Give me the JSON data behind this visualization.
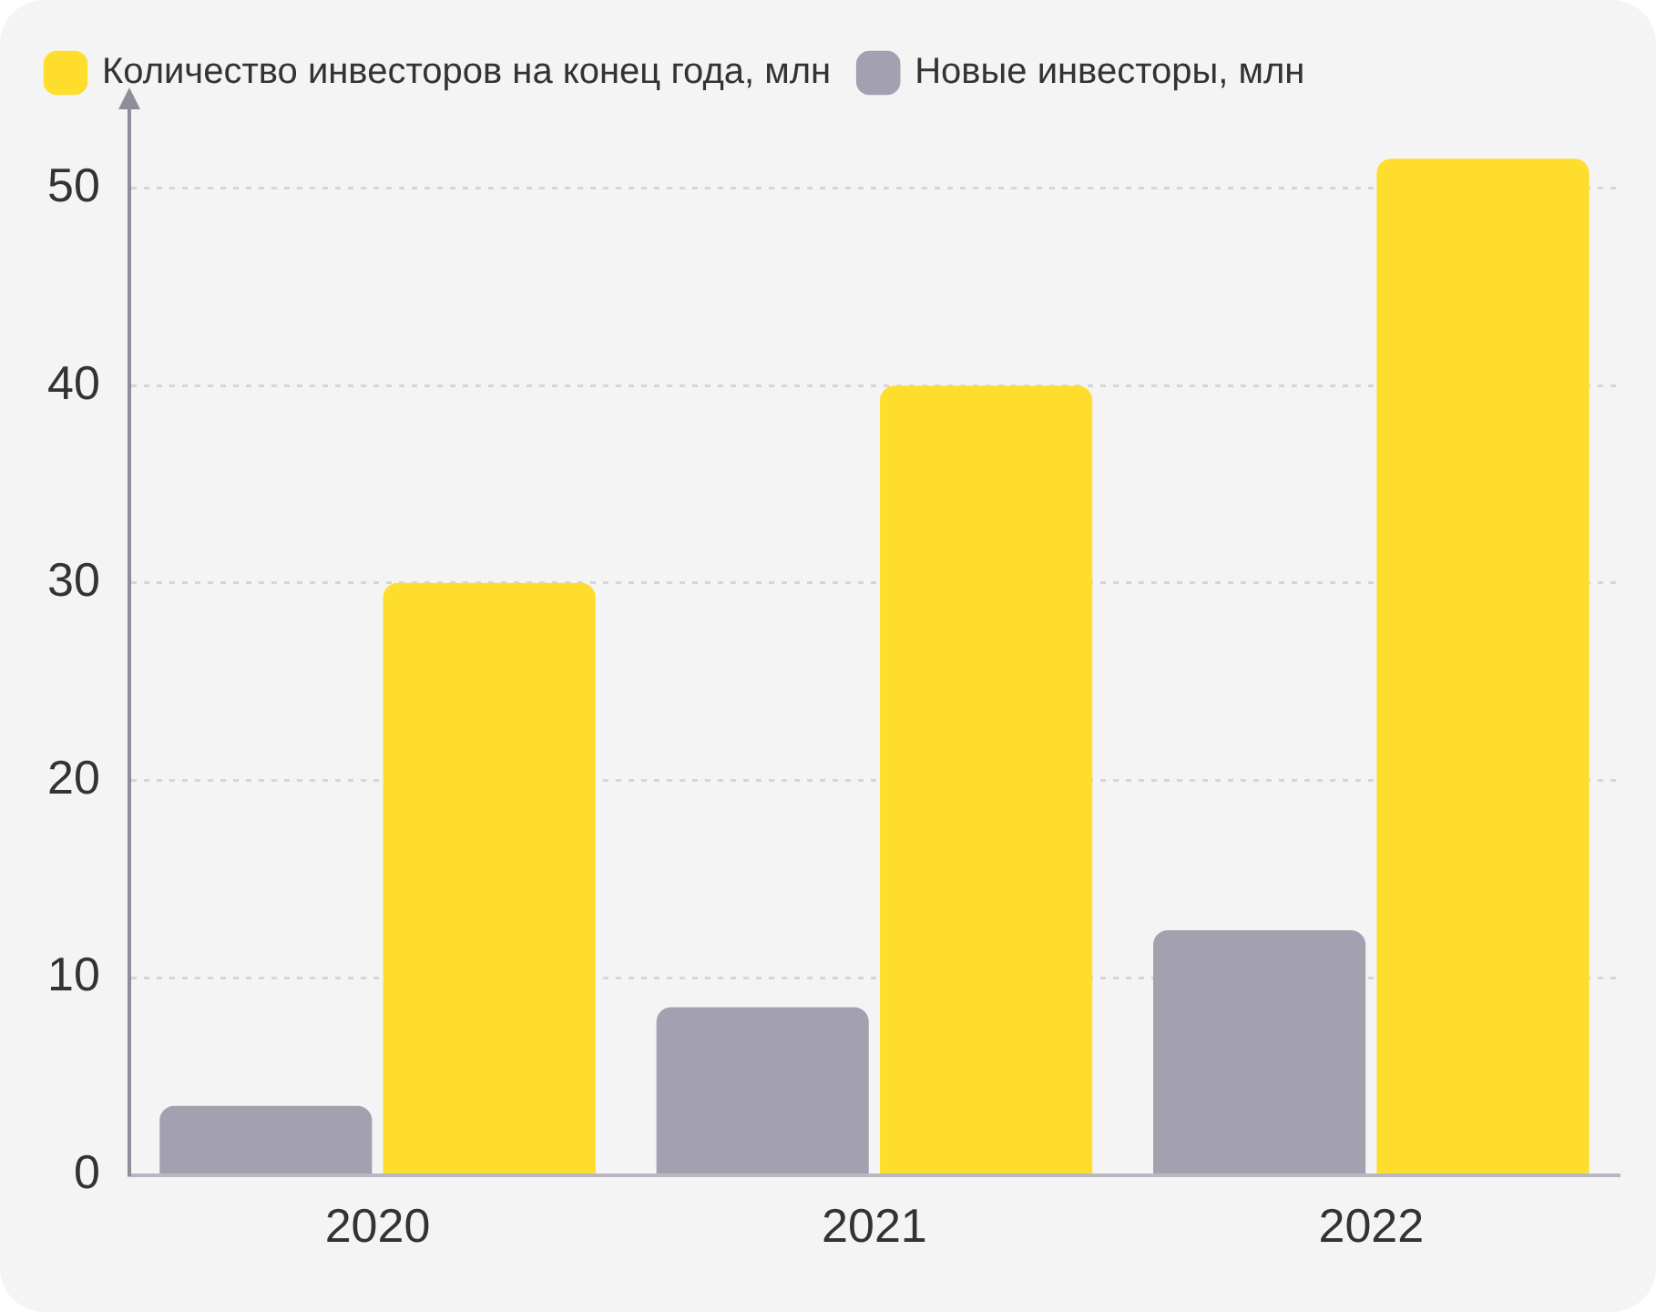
{
  "chart_data": {
    "type": "bar",
    "categories": [
      "2020",
      "2021",
      "2022"
    ],
    "series": [
      {
        "name": "Новые инвесторы, млн",
        "color": "#a3a1b0",
        "values": [
          3.5,
          8.5,
          12.4
        ]
      },
      {
        "name": "Количество инвесторов на конец года, млн",
        "color": "#ffdd2d",
        "values": [
          30,
          40,
          51.5
        ]
      }
    ],
    "ylim": [
      0,
      54
    ],
    "yticks": [
      0,
      10,
      20,
      30,
      40,
      50
    ],
    "grid": "y",
    "legend": "top"
  }
}
